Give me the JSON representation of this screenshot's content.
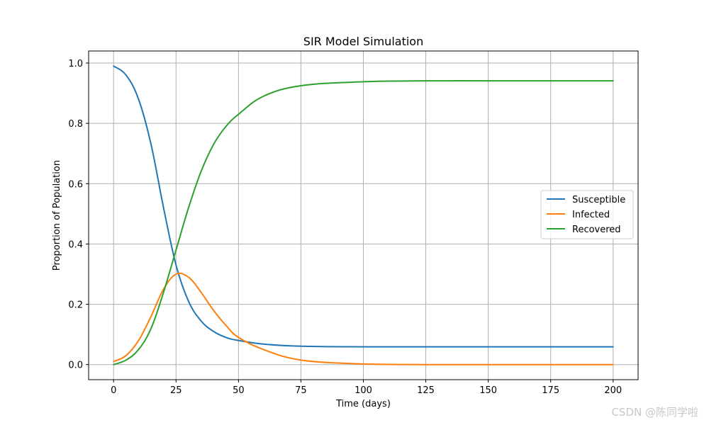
{
  "chart_data": {
    "type": "line",
    "title": "SIR Model Simulation",
    "xlabel": "Time (days)",
    "ylabel": "Proportion of Population",
    "xlim": [
      -10,
      210
    ],
    "ylim": [
      -0.05,
      1.04
    ],
    "xticks": [
      0,
      25,
      50,
      75,
      100,
      125,
      150,
      175,
      200
    ],
    "xtick_labels": [
      "0",
      "25",
      "50",
      "75",
      "100",
      "125",
      "150",
      "175",
      "200"
    ],
    "yticks": [
      0.0,
      0.2,
      0.4,
      0.6,
      0.8,
      1.0
    ],
    "ytick_labels": [
      "0.0",
      "0.2",
      "0.4",
      "0.6",
      "0.8",
      "1.0"
    ],
    "grid": true,
    "legend_position": "center-right",
    "x": [
      0,
      5,
      10,
      15,
      20,
      25,
      30,
      35,
      40,
      45,
      50,
      60,
      75,
      100,
      125,
      150,
      175,
      200
    ],
    "series": [
      {
        "name": "Susceptible",
        "color": "#1f77b4",
        "values": [
          0.99,
          0.96,
          0.88,
          0.73,
          0.52,
          0.33,
          0.21,
          0.145,
          0.11,
          0.09,
          0.08,
          0.068,
          0.061,
          0.059,
          0.059,
          0.059,
          0.059,
          0.059
        ]
      },
      {
        "name": "Infected",
        "color": "#ff7f0e",
        "values": [
          0.01,
          0.03,
          0.08,
          0.16,
          0.25,
          0.3,
          0.29,
          0.24,
          0.18,
          0.13,
          0.09,
          0.05,
          0.015,
          0.002,
          0.0,
          0.0,
          0.0,
          0.0
        ]
      },
      {
        "name": "Recovered",
        "color": "#2ca02c",
        "values": [
          0.0,
          0.015,
          0.05,
          0.12,
          0.24,
          0.38,
          0.52,
          0.64,
          0.73,
          0.79,
          0.83,
          0.89,
          0.925,
          0.938,
          0.941,
          0.941,
          0.941,
          0.941
        ]
      }
    ]
  },
  "watermark": "CSDN @陈同学啦"
}
